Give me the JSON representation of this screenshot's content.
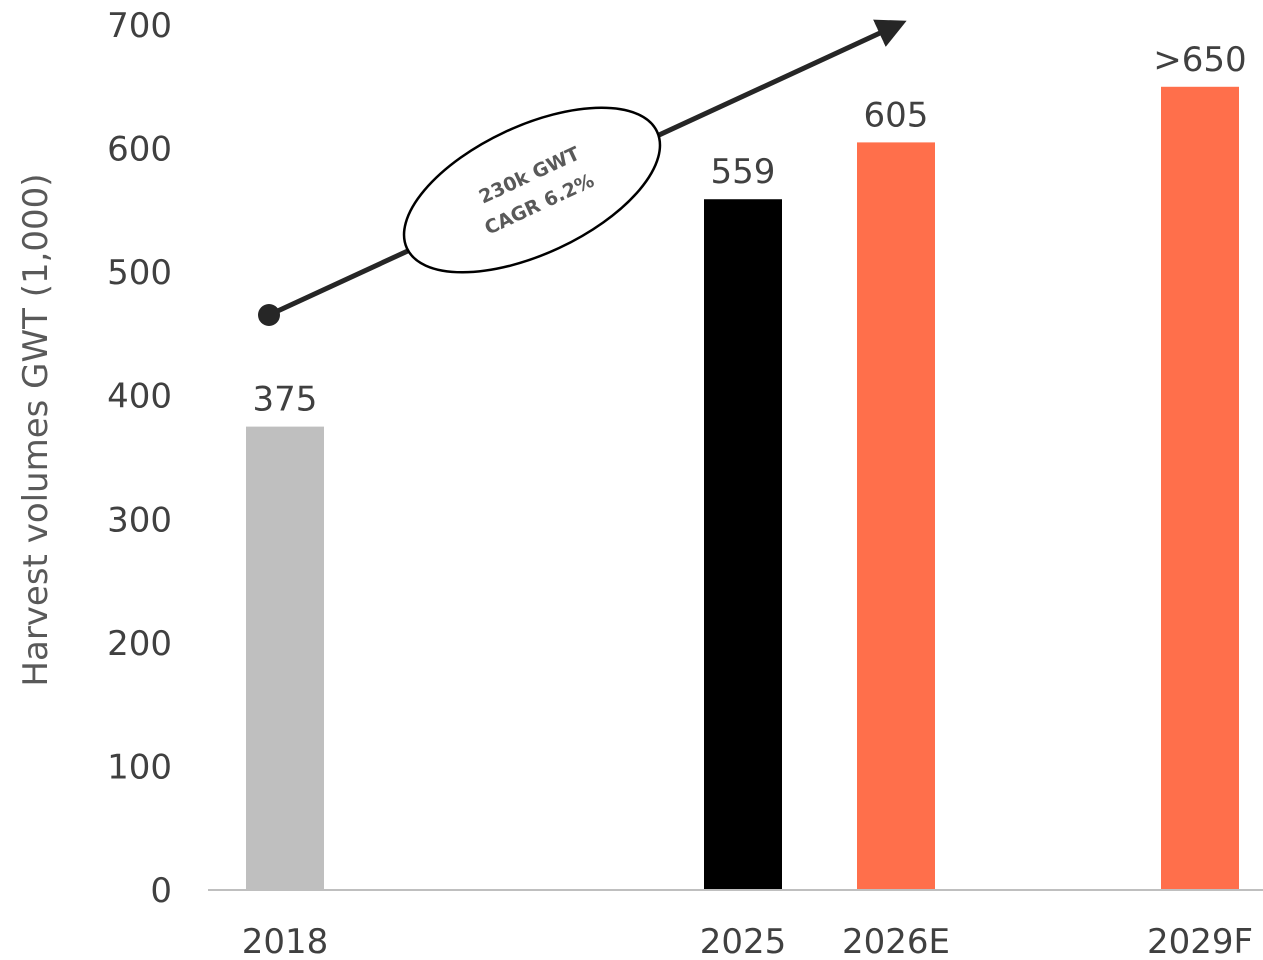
{
  "chart_data": {
    "type": "bar",
    "ylabel": "Harvest volumes GWT (1,000)",
    "ylim": [
      0,
      700
    ],
    "yticks": [
      0,
      100,
      200,
      300,
      400,
      500,
      600,
      700
    ],
    "grid": false,
    "legend": "none",
    "categories": [
      "2018",
      "2025",
      "2026E",
      "2029F"
    ],
    "values": [
      375,
      559,
      605,
      650
    ],
    "data_labels": [
      "375",
      "559",
      "605",
      ">650"
    ],
    "bar_colors": [
      "#bfbfbf",
      "#000000",
      "#ff6f4b",
      "#ff6f4b"
    ],
    "annotation": {
      "line1": "230k GWT",
      "line2": "CAGR 6.2%"
    }
  },
  "colors": {
    "axis": "#bfbfbf",
    "text": "#404040",
    "arrow": "#262626"
  }
}
